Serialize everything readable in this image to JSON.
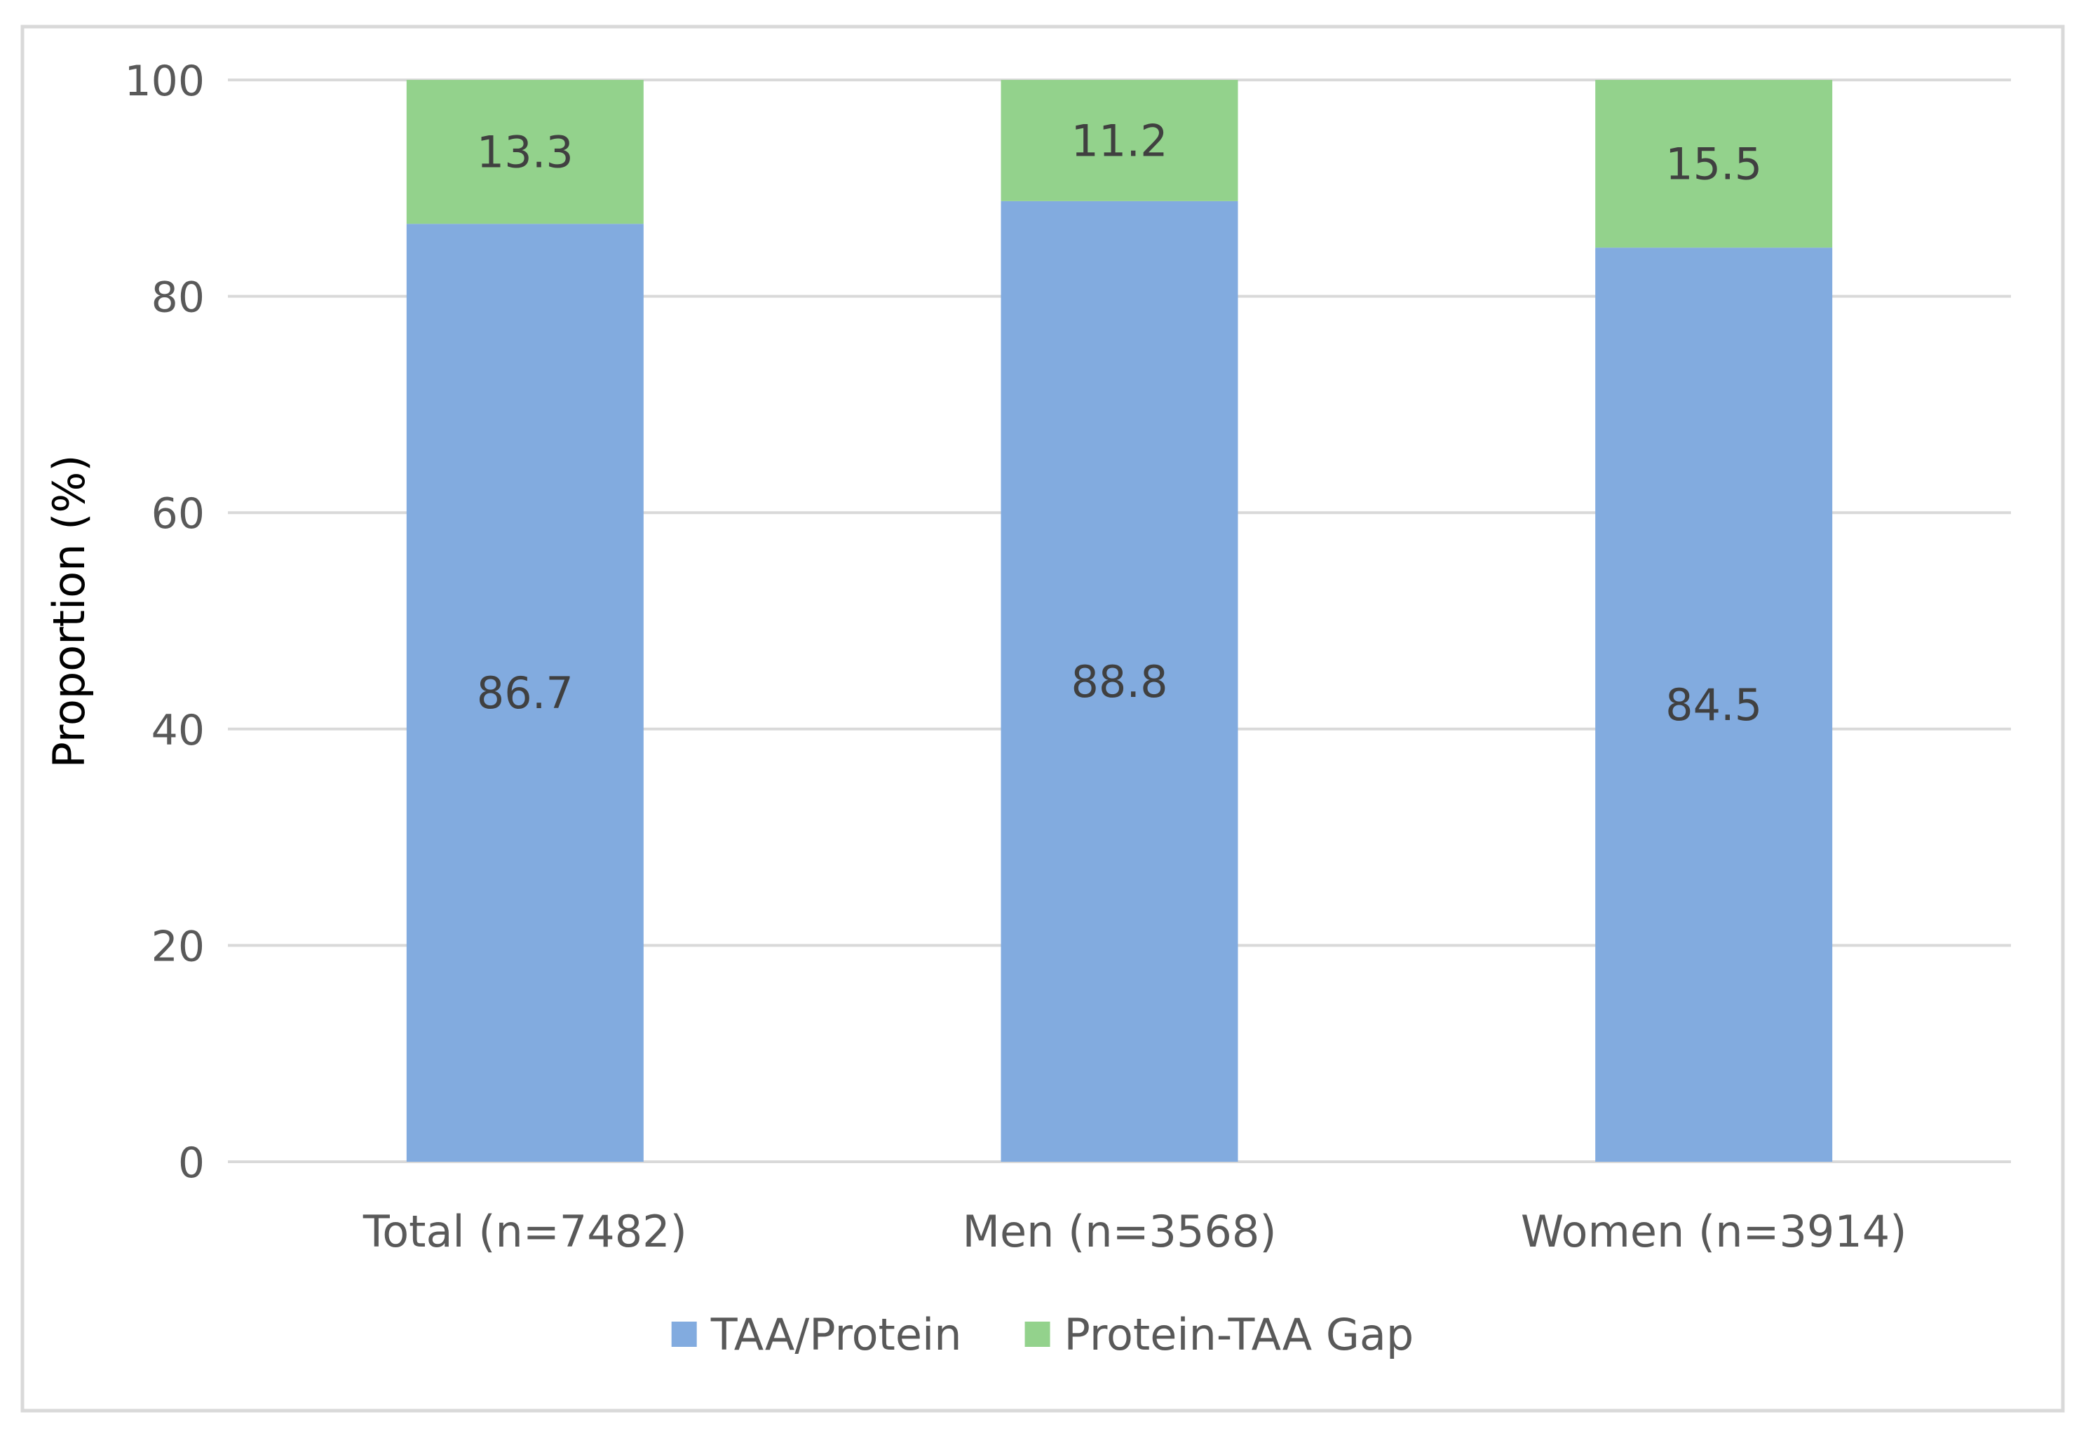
{
  "chart_data": {
    "type": "bar",
    "stacked": true,
    "categories": [
      "Total (n=7482)",
      "Men (n=3568)",
      "Women (n=3914)"
    ],
    "series": [
      {
        "name": "TAA/Protein",
        "values": [
          86.7,
          88.8,
          84.5
        ],
        "color": "#82ABDF"
      },
      {
        "name": "Protein-TAA Gap",
        "values": [
          13.3,
          11.2,
          15.5
        ],
        "color": "#93D28C"
      }
    ],
    "title": "",
    "xlabel": "",
    "ylabel": "Proportion (%)",
    "ylim": [
      0,
      100
    ],
    "yticks": [
      0,
      20,
      40,
      60,
      80,
      100
    ],
    "grid": true,
    "legend": "bottom",
    "frame_color": "#D9D9D9",
    "grid_color": "#D9D9D9"
  }
}
